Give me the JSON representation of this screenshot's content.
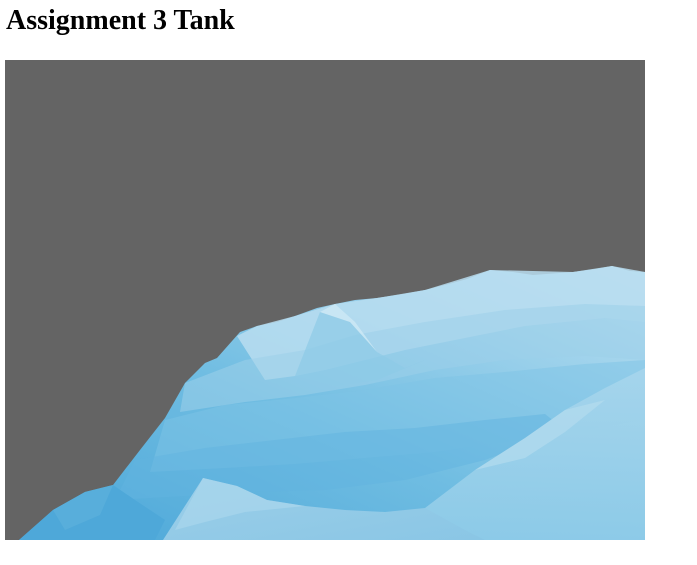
{
  "page": {
    "title": "Assignment 3 Tank"
  },
  "scene": {
    "background_color": "#646464",
    "terrain_colors": {
      "dark": "#4aa6d8",
      "mid": "#6fbde2",
      "light": "#a9d7ee",
      "highlight": "#c6e5f4"
    }
  }
}
